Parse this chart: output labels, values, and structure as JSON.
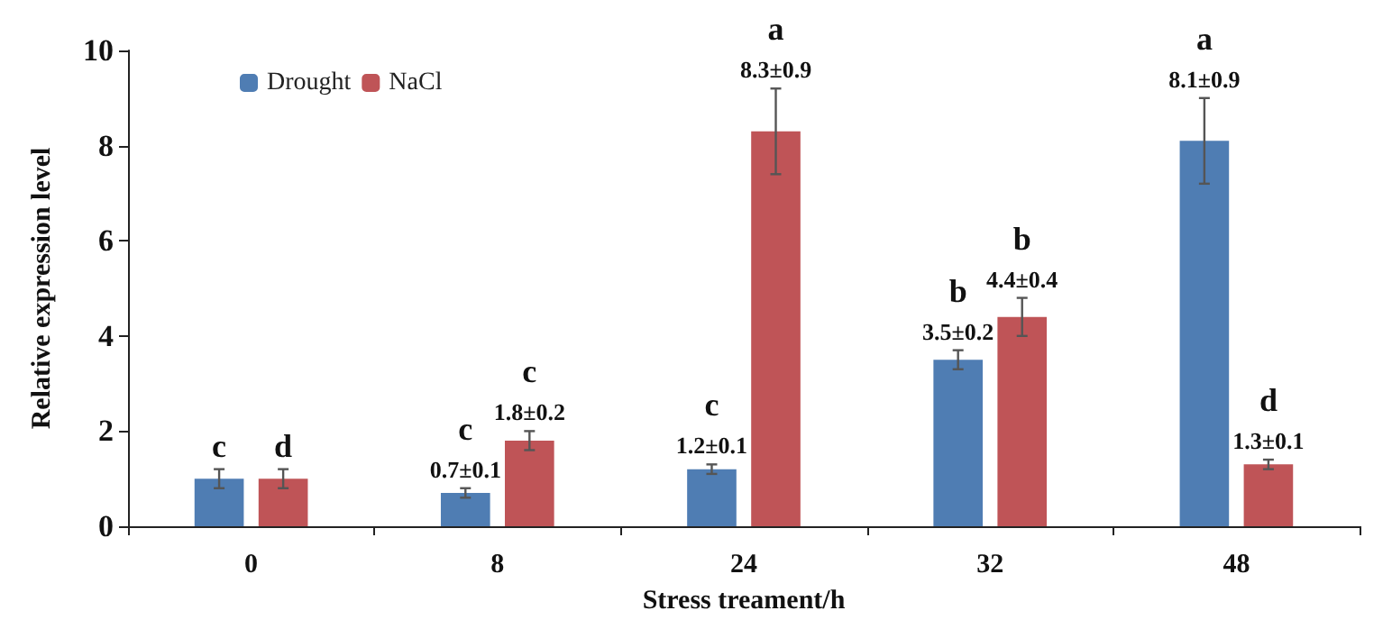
{
  "chart_data": {
    "type": "bar",
    "xlabel": "Stress treament/h",
    "ylabel": "Relative expression level",
    "categories": [
      "0",
      "8",
      "24",
      "32",
      "48"
    ],
    "series": [
      {
        "name": "Drought",
        "color": "#4f7db3",
        "values": [
          1.0,
          0.7,
          1.2,
          3.5,
          8.1
        ],
        "errors": [
          0.2,
          0.1,
          0.1,
          0.2,
          0.9
        ],
        "value_labels": [
          "c",
          "c\n0.7±0.1",
          "c\n1.2±0.1",
          "b\n3.5±0.2",
          "a\n8.1±0.9"
        ]
      },
      {
        "name": "NaCl",
        "color": "#bf5457",
        "values": [
          1.0,
          1.8,
          8.3,
          4.4,
          1.3
        ],
        "errors": [
          0.2,
          0.2,
          0.9,
          0.4,
          0.1
        ],
        "value_labels": [
          "d",
          "c\n1.8±0.2",
          "a\n8.3±0.9",
          "b\n4.4±0.4",
          "d\n1.3±0.1"
        ]
      }
    ],
    "ylim": [
      0,
      10
    ],
    "yticks": [
      0,
      2,
      4,
      6,
      8,
      10
    ],
    "grid": false,
    "legend": "top left"
  }
}
